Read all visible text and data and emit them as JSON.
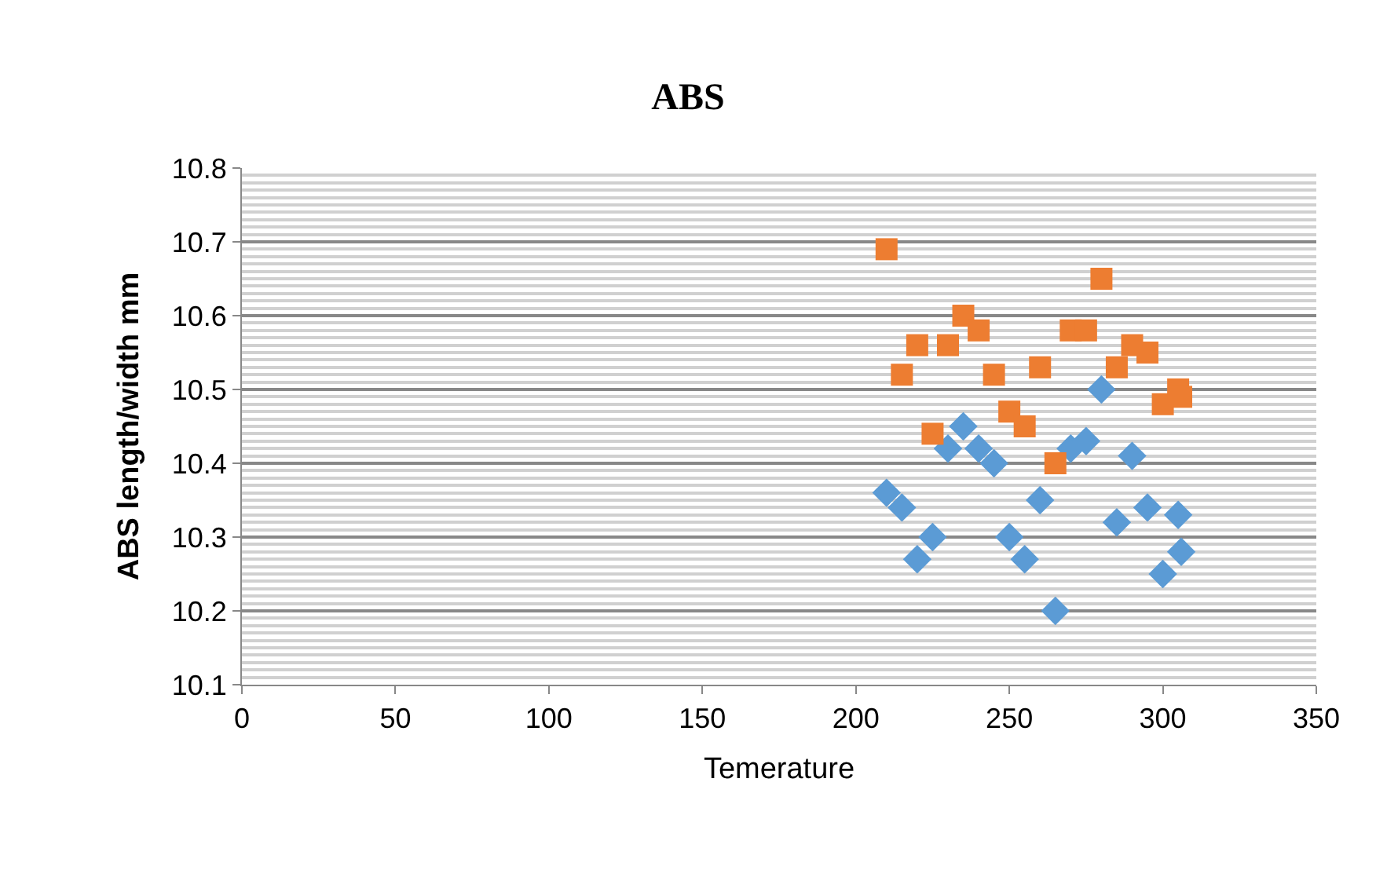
{
  "chart_data": {
    "type": "scatter",
    "title": "ABS",
    "xlabel": "Temerature",
    "ylabel": "ABS length/width mm",
    "xlim": [
      0,
      350
    ],
    "xticks": [
      0,
      50,
      100,
      150,
      200,
      250,
      300,
      350
    ],
    "ylim": [
      10.1,
      10.8
    ],
    "yticks": [
      10.1,
      10.2,
      10.3,
      10.4,
      10.5,
      10.6,
      10.7,
      10.8
    ],
    "grid": "y",
    "series": [
      {
        "color": "#5b9bd5",
        "marker": "diamond",
        "x": [
          210,
          215,
          220,
          225,
          230,
          235,
          240,
          245,
          250,
          255,
          260,
          265,
          270,
          275,
          280,
          285,
          290,
          295,
          300,
          305,
          306
        ],
        "values": [
          10.36,
          10.34,
          10.27,
          10.3,
          10.42,
          10.45,
          10.42,
          10.4,
          10.3,
          10.27,
          10.35,
          10.2,
          10.42,
          10.43,
          10.5,
          10.32,
          10.41,
          10.34,
          10.25,
          10.33,
          10.28
        ]
      },
      {
        "color": "#ed7d31",
        "marker": "square",
        "x": [
          210,
          215,
          220,
          225,
          230,
          235,
          240,
          245,
          250,
          255,
          260,
          265,
          270,
          275,
          280,
          285,
          290,
          295,
          300,
          305,
          306
        ],
        "values": [
          10.69,
          10.52,
          10.56,
          10.44,
          10.56,
          10.6,
          10.58,
          10.52,
          10.47,
          10.45,
          10.53,
          10.4,
          10.58,
          10.58,
          10.65,
          10.53,
          10.56,
          10.55,
          10.48,
          10.5,
          10.49
        ]
      }
    ]
  }
}
